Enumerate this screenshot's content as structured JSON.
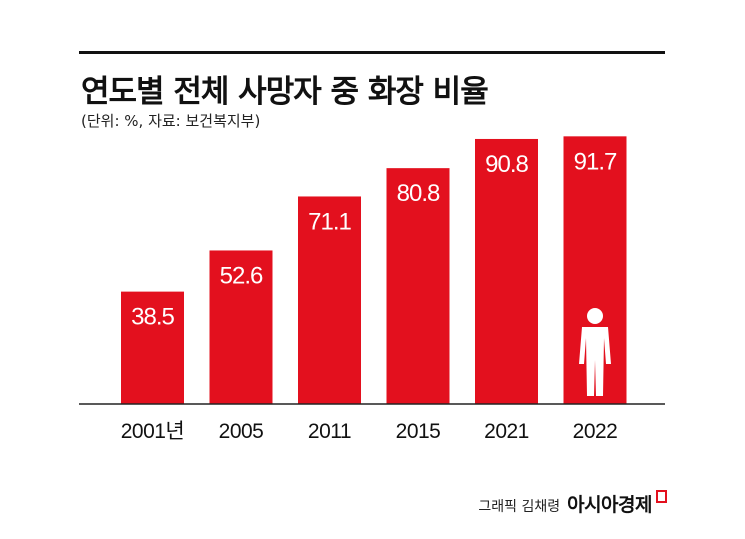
{
  "header": {
    "title": "연도별 전체 사망자 중 화장 비율",
    "subtitle": "(단위: %, 자료: 보건복지부)"
  },
  "footer": {
    "credit_prefix": "그래픽 김채령",
    "brand": "아시아경제"
  },
  "chart_data": {
    "type": "bar",
    "title": "연도별 전체 사망자 중 화장 비율",
    "subtitle": "(단위: %, 자료: 보건복지부)",
    "categories": [
      "2001년",
      "2005",
      "2011",
      "2015",
      "2021",
      "2022"
    ],
    "values": [
      38.5,
      52.6,
      71.1,
      80.8,
      90.8,
      91.7
    ],
    "value_labels": [
      "38.5",
      "52.6",
      "71.1",
      "80.8",
      "90.8",
      "91.7"
    ],
    "ylim": [
      0,
      100
    ],
    "grid": false,
    "legend": "none",
    "bar_color": "#e3101e",
    "label_color": "#ffffff",
    "annotation_icon": "person-icon"
  }
}
